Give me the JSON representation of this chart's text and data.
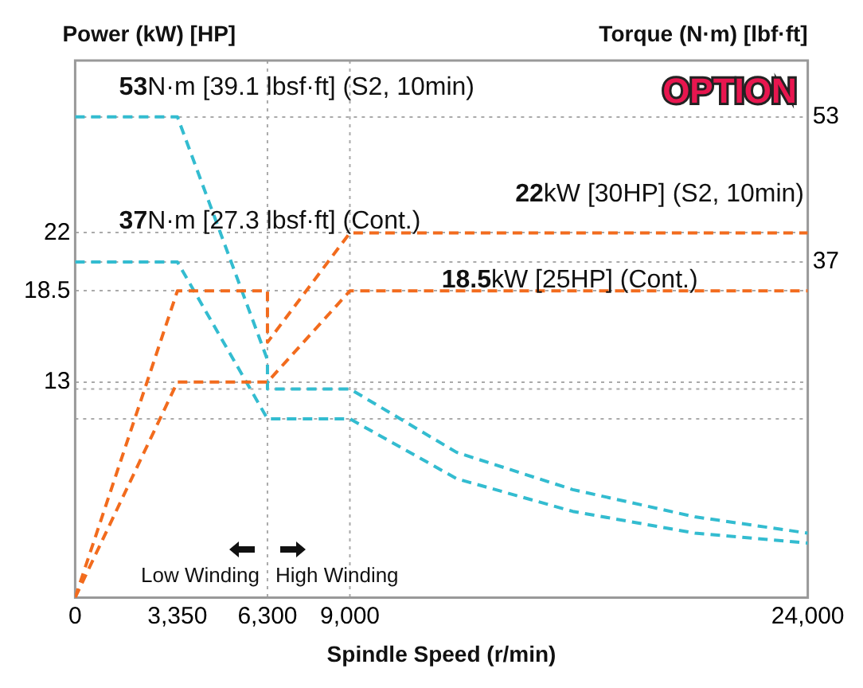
{
  "chart_data": {
    "type": "line",
    "xlabel": "Spindle Speed (r/min)",
    "ylabel": "Power (kW) [HP]",
    "y2label": "Torque (N·m) [lbf·ft]",
    "xlim": [
      0,
      24000
    ],
    "xticks": [
      0,
      {
        "value": 3350,
        "label": "3,350"
      },
      {
        "value": 6300,
        "label": "6,300"
      },
      {
        "value": 9000,
        "label": "9,000"
      },
      {
        "value": 24000,
        "label": "24,000"
      }
    ],
    "ylim": [
      0,
      32.4
    ],
    "yticks": [
      13,
      18.5,
      22
    ],
    "y2lim": [
      0,
      59.2
    ],
    "y2ticks": [
      37,
      53
    ],
    "grid": "y",
    "line_style": "dashed",
    "series": [
      {
        "color": "#f26b1d",
        "axis": "y",
        "x": [
          0,
          3350,
          6300,
          6300,
          9000,
          24000
        ],
        "values": [
          0,
          18.5,
          18.5,
          15.4,
          22,
          22
        ]
      },
      {
        "color": "#f26b1d",
        "axis": "y",
        "x": [
          0,
          3350,
          6300,
          9000,
          24000
        ],
        "values": [
          0,
          13,
          13,
          18.5,
          18.5
        ]
      },
      {
        "color": "#33bcd0",
        "axis": "y2",
        "x": [
          0,
          3350,
          6300,
          6300,
          9000,
          12500,
          16300,
          20300,
          24000
        ],
        "values": [
          53,
          53,
          26.2,
          23,
          23,
          16,
          11.9,
          8.9,
          7.1
        ]
      },
      {
        "color": "#33bcd0",
        "axis": "y2",
        "x": [
          0,
          3350,
          6300,
          9000,
          12500,
          16300,
          20300,
          24000
        ],
        "values": [
          37,
          37,
          19.7,
          19.7,
          13.1,
          9.5,
          7.1,
          6.0
        ]
      }
    ],
    "ref_lines": [
      {
        "axis": "y2",
        "value": 23,
        "color": "#aaaaaa",
        "line_style": "dotted"
      },
      {
        "axis": "y2",
        "value": 19.7,
        "color": "#aaaaaa",
        "line_style": "dotted"
      },
      {
        "axis": "x",
        "value": 6300,
        "color": "#aaaaaa",
        "line_style": "dotted"
      },
      {
        "axis": "x",
        "value": 9000,
        "color": "#aaaaaa",
        "line_style": "dotted"
      }
    ],
    "annotations": [
      "53N·m [39.1 lbsf·ft] (S2, 10min)",
      "37N·m [27.3 lbsf·ft] (Cont.)",
      "22kW [30HP] (S2, 10min)",
      "18.5kW [25HP] (Cont.)",
      "OPTION",
      "Low Winding",
      "High Winding"
    ]
  }
}
